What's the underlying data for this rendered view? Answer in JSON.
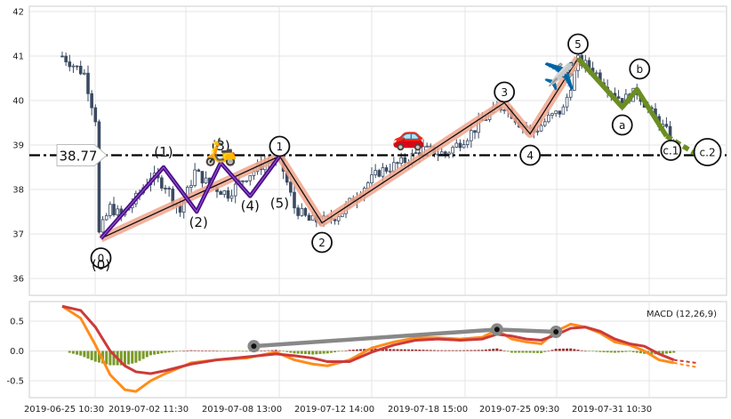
{
  "chart_data": [
    {
      "type": "candlestick",
      "panel": "price",
      "ylim": [
        35.8,
        42.1
      ],
      "grid": true,
      "y_ticks": [
        "36",
        "37",
        "38",
        "39",
        "40",
        "41",
        "42"
      ],
      "price_level": {
        "value": 38.77,
        "label": "38.77",
        "style": "dash-dot"
      },
      "series_approx_close": [
        [
          0,
          41.0
        ],
        [
          3,
          40.8
        ],
        [
          6,
          40.6
        ],
        [
          9,
          39.6
        ],
        [
          10,
          37.0
        ],
        [
          13,
          37.6
        ],
        [
          16,
          37.4
        ],
        [
          20,
          37.8
        ],
        [
          24,
          38.3
        ],
        [
          28,
          38.1
        ],
        [
          32,
          37.5
        ],
        [
          36,
          38.4
        ],
        [
          40,
          38.1
        ],
        [
          45,
          37.9
        ],
        [
          50,
          38.3
        ],
        [
          55,
          38.6
        ],
        [
          59,
          38.7
        ],
        [
          63,
          37.6
        ],
        [
          67,
          37.3
        ],
        [
          72,
          37.3
        ],
        [
          76,
          37.5
        ],
        [
          80,
          37.9
        ],
        [
          86,
          38.4
        ],
        [
          92,
          38.6
        ],
        [
          98,
          38.9
        ],
        [
          104,
          38.8
        ],
        [
          110,
          39.2
        ],
        [
          116,
          39.7
        ],
        [
          120,
          39.9
        ],
        [
          124,
          39.5
        ],
        [
          128,
          39.3
        ],
        [
          132,
          39.6
        ],
        [
          136,
          39.8
        ],
        [
          140,
          40.9
        ],
        [
          144,
          40.7
        ],
        [
          148,
          40.3
        ],
        [
          152,
          40.0
        ],
        [
          156,
          40.2
        ],
        [
          160,
          39.7
        ],
        [
          164,
          39.3
        ],
        [
          166,
          39.0
        ]
      ],
      "elliott_waves": {
        "main": [
          {
            "label": "0",
            "x": 10.5,
            "y": 36.9
          },
          {
            "label": "1",
            "x": 59,
            "y": 38.75
          },
          {
            "label": "2",
            "x": 70.5,
            "y": 37.25
          },
          {
            "label": "3",
            "x": 120,
            "y": 39.95
          },
          {
            "label": "4",
            "x": 127,
            "y": 39.25
          },
          {
            "label": "5",
            "x": 140,
            "y": 40.95
          }
        ],
        "sub": [
          {
            "label": "(0)",
            "x": 10.5,
            "y": 36.9
          },
          {
            "label": "(1)",
            "x": 27.5,
            "y": 38.5
          },
          {
            "label": "(2)",
            "x": 36.5,
            "y": 37.5
          },
          {
            "label": "(3)",
            "x": 43,
            "y": 38.6
          },
          {
            "label": "(4)",
            "x": 51,
            "y": 37.85
          },
          {
            "label": "(5)",
            "x": 59,
            "y": 38.75
          }
        ],
        "correction": [
          {
            "label": "a",
            "x": 152,
            "y": 39.85
          },
          {
            "label": "b",
            "x": 156,
            "y": 40.25
          },
          {
            "label": "c.1",
            "x": 164,
            "y": 39.2
          },
          {
            "label": "c.2",
            "x": 172,
            "y": 38.8
          }
        ]
      },
      "icons": [
        "scooter-icon",
        "car-icon",
        "airplane-icon"
      ]
    },
    {
      "type": "line",
      "panel": "macd",
      "title": "MACD (12,26,9)",
      "ylim": [
        -0.8,
        0.8
      ],
      "y_ticks": [
        "-0.5",
        "0.0",
        "0.5"
      ],
      "x_ticks": [
        "2019-06-25 10:30",
        "2019-07-02 11:30",
        "2019-07-08 13:00",
        "2019-07-12 14:00",
        "2019-07-18 15:00",
        "2019-07-25 09:30",
        "2019-07-31 10:30"
      ],
      "series": [
        {
          "color": "#ff8c1a",
          "values": [
            [
              0,
              0.75
            ],
            [
              5,
              0.55
            ],
            [
              9,
              0.1
            ],
            [
              13,
              -0.4
            ],
            [
              17,
              -0.65
            ],
            [
              20,
              -0.68
            ],
            [
              24,
              -0.5
            ],
            [
              28,
              -0.38
            ],
            [
              35,
              -0.2
            ],
            [
              42,
              -0.15
            ],
            [
              50,
              -0.12
            ],
            [
              58,
              -0.02
            ],
            [
              63,
              -0.15
            ],
            [
              68,
              -0.22
            ],
            [
              72,
              -0.25
            ],
            [
              78,
              -0.15
            ],
            [
              84,
              0.05
            ],
            [
              90,
              0.15
            ],
            [
              96,
              0.22
            ],
            [
              102,
              0.22
            ],
            [
              108,
              0.2
            ],
            [
              114,
              0.23
            ],
            [
              118,
              0.35
            ],
            [
              122,
              0.2
            ],
            [
              126,
              0.15
            ],
            [
              130,
              0.12
            ],
            [
              134,
              0.33
            ],
            [
              138,
              0.45
            ],
            [
              142,
              0.4
            ],
            [
              146,
              0.3
            ],
            [
              150,
              0.15
            ],
            [
              154,
              0.1
            ],
            [
              158,
              0.0
            ],
            [
              162,
              -0.15
            ],
            [
              166,
              -0.2
            ]
          ]
        },
        {
          "color": "#cc3a3a",
          "values": [
            [
              0,
              0.75
            ],
            [
              5,
              0.68
            ],
            [
              9,
              0.4
            ],
            [
              13,
              0.0
            ],
            [
              17,
              -0.25
            ],
            [
              20,
              -0.35
            ],
            [
              24,
              -0.38
            ],
            [
              28,
              -0.33
            ],
            [
              35,
              -0.22
            ],
            [
              42,
              -0.15
            ],
            [
              50,
              -0.1
            ],
            [
              58,
              -0.05
            ],
            [
              63,
              -0.08
            ],
            [
              68,
              -0.12
            ],
            [
              72,
              -0.18
            ],
            [
              78,
              -0.18
            ],
            [
              84,
              -0.02
            ],
            [
              90,
              0.1
            ],
            [
              96,
              0.18
            ],
            [
              102,
              0.2
            ],
            [
              108,
              0.18
            ],
            [
              114,
              0.2
            ],
            [
              118,
              0.28
            ],
            [
              122,
              0.25
            ],
            [
              126,
              0.2
            ],
            [
              130,
              0.18
            ],
            [
              134,
              0.27
            ],
            [
              138,
              0.38
            ],
            [
              142,
              0.4
            ],
            [
              146,
              0.33
            ],
            [
              150,
              0.2
            ],
            [
              154,
              0.12
            ],
            [
              158,
              0.08
            ],
            [
              162,
              -0.05
            ],
            [
              166,
              -0.15
            ]
          ]
        }
      ],
      "divergence_points": [
        {
          "x": 52,
          "y": 0.08
        },
        {
          "x": 118,
          "y": 0.36
        },
        {
          "x": 134,
          "y": 0.32
        }
      ]
    }
  ]
}
